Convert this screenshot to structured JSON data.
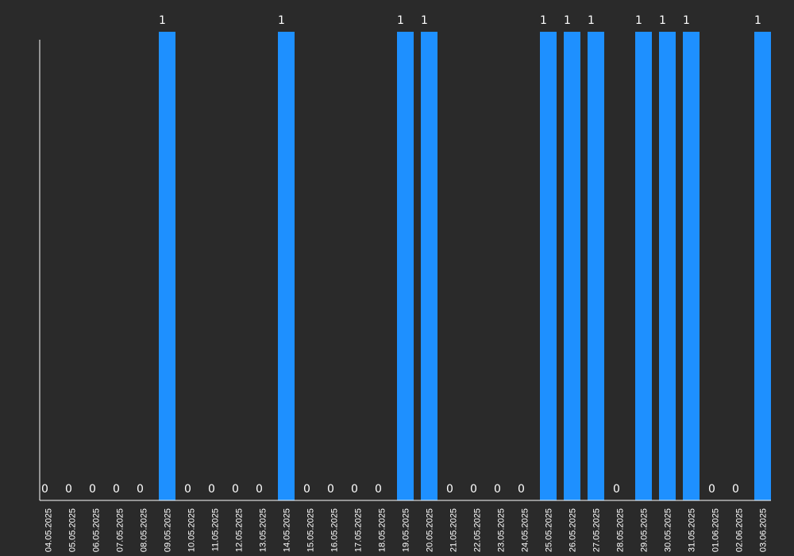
{
  "chart_data": {
    "type": "bar",
    "categories": [
      "04.05.2025",
      "05.05.2025",
      "06.05.2025",
      "07.05.2025",
      "08.05.2025",
      "09.05.2025",
      "10.05.2025",
      "11.05.2025",
      "12.05.2025",
      "13.05.2025",
      "14.05.2025",
      "15.05.2025",
      "16.05.2025",
      "17.05.2025",
      "18.05.2025",
      "19.05.2025",
      "20.05.2025",
      "21.05.2025",
      "22.05.2025",
      "23.05.2025",
      "24.05.2025",
      "25.05.2025",
      "26.05.2025",
      "27.05.2025",
      "28.05.2025",
      "29.05.2025",
      "30.05.2025",
      "31.05.2025",
      "01.06.2025",
      "02.06.2025",
      "03.06.2025"
    ],
    "values": [
      0,
      0,
      0,
      0,
      0,
      1,
      0,
      0,
      0,
      0,
      1,
      0,
      0,
      0,
      0,
      1,
      1,
      0,
      0,
      0,
      0,
      1,
      1,
      1,
      0,
      1,
      1,
      1,
      0,
      0,
      1
    ],
    "title": "",
    "xlabel": "",
    "ylabel": "",
    "ylim": [
      0,
      1
    ],
    "grid": false,
    "data_labels": true,
    "colors": {
      "background": "#2a2a2a",
      "bar": "#1e90ff",
      "axis": "#ffffff",
      "text": "#ffffff"
    }
  }
}
